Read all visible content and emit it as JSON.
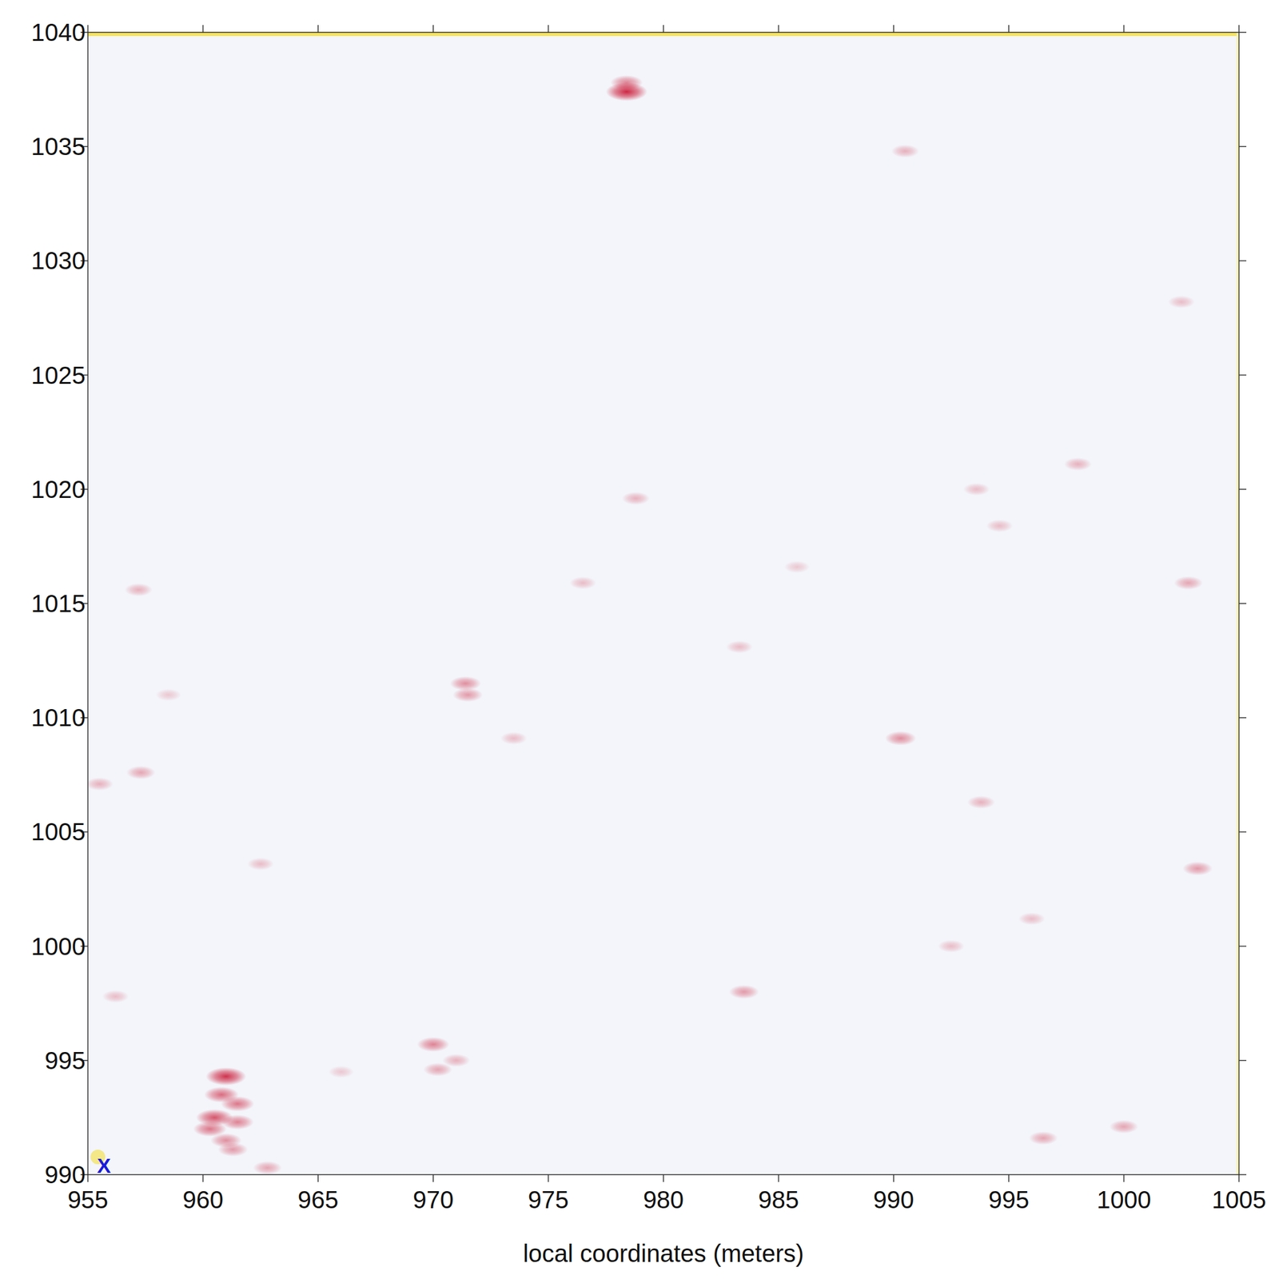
{
  "chart_data": {
    "type": "heatmap",
    "x_label": "local coordinates (meters)",
    "xlim": [
      955,
      1005
    ],
    "xticks": [
      955,
      960,
      965,
      970,
      975,
      980,
      985,
      990,
      995,
      1000,
      1005
    ],
    "ylim": [
      990,
      1040
    ],
    "yticks": [
      990,
      995,
      1000,
      1005,
      1010,
      1015,
      1020,
      1025,
      1030,
      1035,
      1040
    ],
    "color": "#c8102e",
    "anomalies": [
      [
        978.4,
        1037.4,
        0.9
      ],
      [
        978.4,
        1037.8,
        0.5
      ],
      [
        961.0,
        994.3,
        0.85
      ],
      [
        960.8,
        993.5,
        0.6
      ],
      [
        961.5,
        993.1,
        0.55
      ],
      [
        960.5,
        992.5,
        0.7
      ],
      [
        961.5,
        992.3,
        0.5
      ],
      [
        960.3,
        992.0,
        0.55
      ],
      [
        961.0,
        991.5,
        0.45
      ],
      [
        961.3,
        991.1,
        0.4
      ],
      [
        962.8,
        990.3,
        0.35
      ],
      [
        970.0,
        995.7,
        0.5
      ],
      [
        970.2,
        994.6,
        0.35
      ],
      [
        971.0,
        995.0,
        0.3
      ],
      [
        971.4,
        1011.5,
        0.45
      ],
      [
        971.5,
        1011.0,
        0.4
      ],
      [
        990.3,
        1009.1,
        0.45
      ],
      [
        983.5,
        998.0,
        0.4
      ],
      [
        1000.0,
        992.1,
        0.35
      ],
      [
        996.5,
        991.6,
        0.35
      ],
      [
        1003.2,
        1003.4,
        0.4
      ],
      [
        1002.8,
        1015.9,
        0.35
      ],
      [
        998.0,
        1021.1,
        0.3
      ],
      [
        990.5,
        1034.8,
        0.3
      ],
      [
        957.2,
        1015.6,
        0.3
      ],
      [
        957.3,
        1007.6,
        0.35
      ],
      [
        955.5,
        1007.1,
        0.3
      ],
      [
        993.8,
        1006.3,
        0.3
      ],
      [
        973.5,
        1009.1,
        0.25
      ],
      [
        962.5,
        1003.6,
        0.25
      ],
      [
        978.8,
        1019.6,
        0.3
      ],
      [
        976.5,
        1015.9,
        0.25
      ],
      [
        956.2,
        997.8,
        0.25
      ],
      [
        993.6,
        1020.0,
        0.25
      ],
      [
        994.6,
        1018.4,
        0.25
      ],
      [
        1002.5,
        1028.2,
        0.25
      ],
      [
        985.8,
        1016.6,
        0.2
      ],
      [
        983.3,
        1013.1,
        0.25
      ],
      [
        958.5,
        1011.0,
        0.2
      ],
      [
        996.0,
        1001.2,
        0.25
      ],
      [
        992.5,
        1000.0,
        0.25
      ],
      [
        966.0,
        994.5,
        0.2
      ]
    ],
    "annotations": [
      {
        "text": "X",
        "x": 955.7,
        "y": 990.4
      }
    ]
  }
}
